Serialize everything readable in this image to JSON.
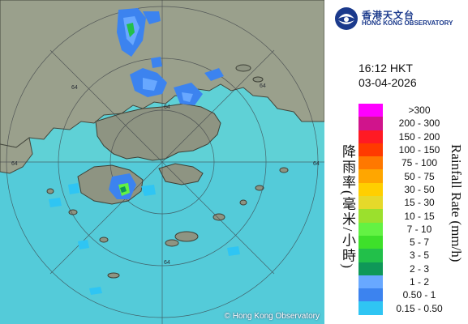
{
  "header": {
    "logo_cn": "香港天文台",
    "logo_en": "HONG KONG OBSERVATORY",
    "time": "16:12 HKT",
    "date": "03-04-2026"
  },
  "legend": {
    "title_cn": "降雨率(毫米/小時)",
    "title_en": "Rainfall Rate (mm/h)",
    "items": [
      {
        "label": ">300",
        "color": "#ff00ff"
      },
      {
        "label": "200 - 300",
        "color": "#d0148c"
      },
      {
        "label": "150 - 200",
        "color": "#ff1a24"
      },
      {
        "label": "100 - 150",
        "color": "#ff3a00"
      },
      {
        "label": "75 - 100",
        "color": "#ff7800"
      },
      {
        "label": "50 - 75",
        "color": "#ffa600"
      },
      {
        "label": "30 - 50",
        "color": "#ffcf00"
      },
      {
        "label": "15 - 30",
        "color": "#e6d92a"
      },
      {
        "label": "10 - 15",
        "color": "#9be02d"
      },
      {
        "label": "7 - 10",
        "color": "#63f243"
      },
      {
        "label": "5 - 7",
        "color": "#3ee02a"
      },
      {
        "label": "3 - 5",
        "color": "#22c04a"
      },
      {
        "label": "2 - 3",
        "color": "#0f9858"
      },
      {
        "label": "1 - 2",
        "color": "#68a8ff"
      },
      {
        "label": "0.50 - 1",
        "color": "#3c83ef"
      },
      {
        "label": "0.15 - 0.50",
        "color": "#2fc5f3"
      }
    ]
  },
  "map": {
    "range_labels": [
      "64",
      "64",
      "64",
      "64",
      "64",
      "64"
    ],
    "copyright": "© Hong Kong Observatory",
    "sea_color": "#5fd1d6",
    "land_color": "#9aa08c"
  }
}
